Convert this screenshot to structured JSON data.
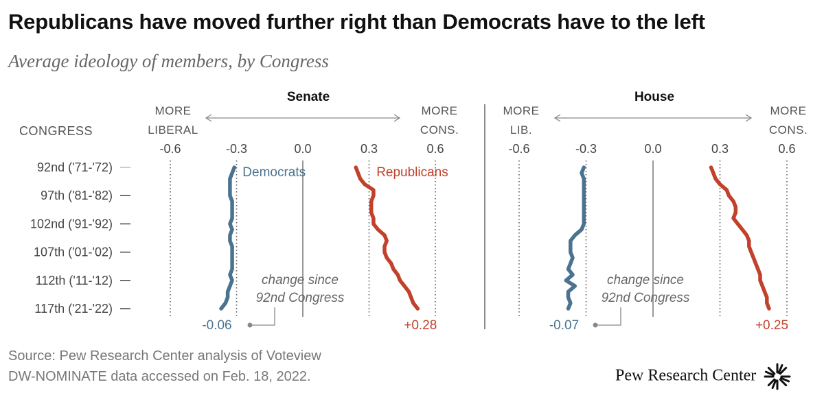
{
  "title": "Republicans have moved further right than Democrats have to the left",
  "subtitle": "Average ideology of members, by Congress",
  "source_lines": [
    "Source: Pew Research Center analysis of Voteview",
    "DW-NOMINATE data accessed on Feb. 18, 2022."
  ],
  "brand": "Pew Research Center",
  "colors": {
    "democrats": "#4a7390",
    "republicans": "#c1412b",
    "grid": "#555555",
    "axis_text": "#444444"
  },
  "chart_data": [
    {
      "type": "line",
      "title": "Senate",
      "xlabel_left": [
        "MORE",
        "LIBERAL"
      ],
      "xlabel_right": [
        "MORE",
        "CONS."
      ],
      "xlim": [
        -0.6,
        0.6
      ],
      "xticks": [
        "-0.6",
        "-0.3",
        "0.0",
        "0.3",
        "0.6"
      ],
      "ylabel": "CONGRESS",
      "congress_range": [
        92,
        117
      ],
      "congress_ticks": [
        92,
        97,
        102,
        107,
        112,
        117
      ],
      "congress_tick_labels": [
        "92nd ('71-'72)",
        "97th ('81-'82)",
        "102nd ('91-'92)",
        "107th ('01-'02)",
        "112th ('11-'12)",
        "117th ('21-'22)"
      ],
      "annotation": [
        "change since",
        "92nd Congress"
      ],
      "series": [
        {
          "name": "Democrats",
          "change_label": "-0.06",
          "x": [
            -0.31,
            -0.32,
            -0.33,
            -0.33,
            -0.33,
            -0.33,
            -0.32,
            -0.32,
            -0.32,
            -0.32,
            -0.33,
            -0.32,
            -0.33,
            -0.33,
            -0.32,
            -0.32,
            -0.32,
            -0.32,
            -0.32,
            -0.33,
            -0.32,
            -0.33,
            -0.34,
            -0.34,
            -0.35,
            -0.37
          ],
          "congress": [
            92,
            93,
            94,
            95,
            96,
            97,
            98,
            99,
            100,
            101,
            102,
            103,
            104,
            105,
            106,
            107,
            108,
            109,
            110,
            111,
            112,
            113,
            114,
            115,
            116,
            117
          ]
        },
        {
          "name": "Republicans",
          "change_label": "+0.28",
          "x": [
            0.24,
            0.25,
            0.26,
            0.28,
            0.32,
            0.32,
            0.31,
            0.31,
            0.31,
            0.32,
            0.32,
            0.34,
            0.37,
            0.38,
            0.37,
            0.37,
            0.38,
            0.4,
            0.41,
            0.43,
            0.44,
            0.46,
            0.48,
            0.49,
            0.5,
            0.52
          ],
          "congress": [
            92,
            93,
            94,
            95,
            96,
            97,
            98,
            99,
            100,
            101,
            102,
            103,
            104,
            105,
            106,
            107,
            108,
            109,
            110,
            111,
            112,
            113,
            114,
            115,
            116,
            117
          ]
        }
      ]
    },
    {
      "type": "line",
      "title": "House",
      "xlabel_left": [
        "MORE",
        "LIB."
      ],
      "xlabel_right": [
        "MORE",
        "CONS."
      ],
      "xlim": [
        -0.6,
        0.6
      ],
      "xticks": [
        "-0.6",
        "-0.3",
        "0.0",
        "0.3",
        "0.6"
      ],
      "congress_range": [
        92,
        117
      ],
      "annotation": [
        "change since",
        "92nd Congress"
      ],
      "series": [
        {
          "name": "Democrats",
          "change_label": "-0.07",
          "x": [
            -0.31,
            -0.32,
            -0.31,
            -0.31,
            -0.31,
            -0.31,
            -0.31,
            -0.31,
            -0.31,
            -0.31,
            -0.31,
            -0.32,
            -0.35,
            -0.37,
            -0.37,
            -0.37,
            -0.36,
            -0.37,
            -0.38,
            -0.36,
            -0.39,
            -0.35,
            -0.38,
            -0.38,
            -0.37,
            -0.38
          ],
          "congress": [
            92,
            93,
            94,
            95,
            96,
            97,
            98,
            99,
            100,
            101,
            102,
            103,
            104,
            105,
            106,
            107,
            108,
            109,
            110,
            111,
            112,
            113,
            114,
            115,
            116,
            117
          ]
        },
        {
          "name": "Republicans",
          "change_label": "+0.25",
          "x": [
            0.26,
            0.27,
            0.28,
            0.3,
            0.33,
            0.34,
            0.36,
            0.37,
            0.37,
            0.36,
            0.38,
            0.4,
            0.42,
            0.43,
            0.43,
            0.44,
            0.45,
            0.46,
            0.47,
            0.48,
            0.48,
            0.49,
            0.5,
            0.51,
            0.51,
            0.52
          ],
          "congress": [
            92,
            93,
            94,
            95,
            96,
            97,
            98,
            99,
            100,
            101,
            102,
            103,
            104,
            105,
            106,
            107,
            108,
            109,
            110,
            111,
            112,
            113,
            114,
            115,
            116,
            117
          ]
        }
      ]
    }
  ]
}
